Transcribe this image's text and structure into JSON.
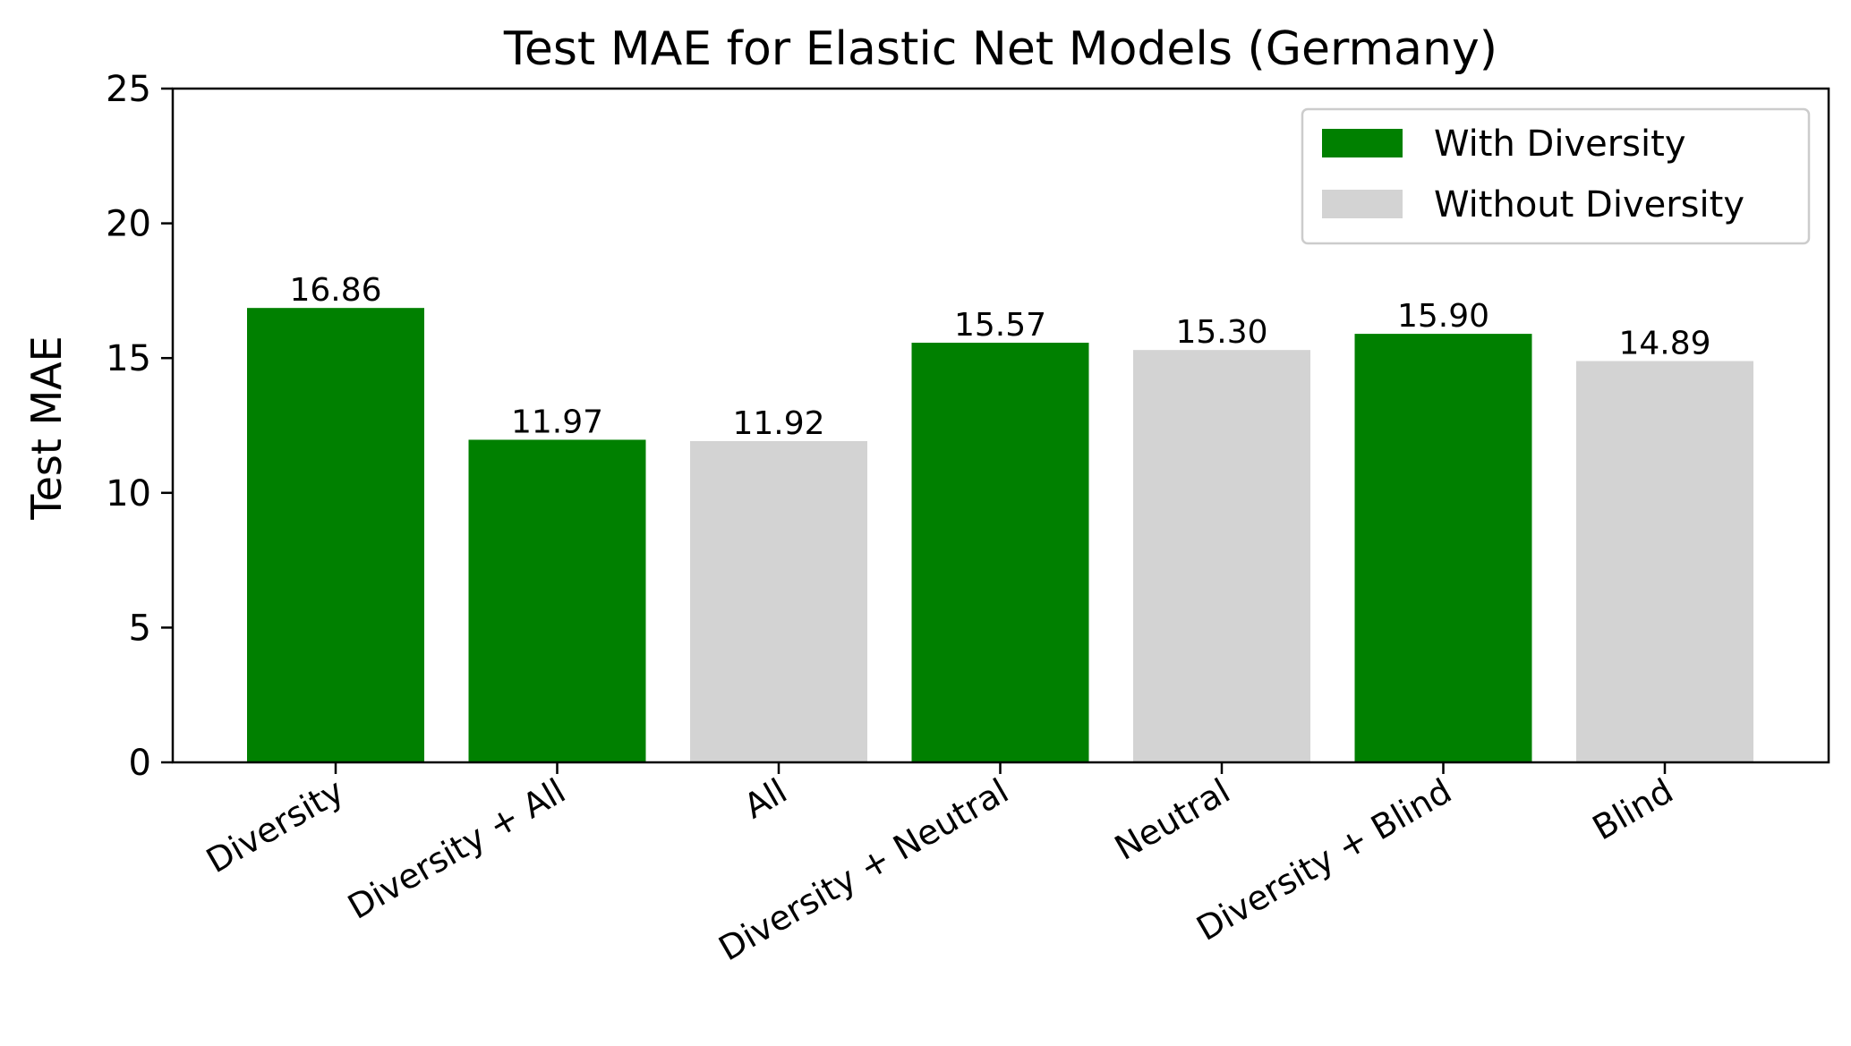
{
  "chart_data": {
    "type": "bar",
    "title": "Test MAE for Elastic Net Models (Germany)",
    "xlabel": "",
    "ylabel": "Test MAE",
    "ylim": [
      0,
      25
    ],
    "yticks": [
      0,
      5,
      10,
      15,
      20,
      25
    ],
    "grid": false,
    "legend_position": "top-right",
    "categories": [
      "Diversity",
      "Diversity + All",
      "All",
      "Diversity + Neutral",
      "Neutral",
      "Diversity + Blind",
      "Blind"
    ],
    "values": [
      16.86,
      11.97,
      11.92,
      15.57,
      15.3,
      15.9,
      14.89
    ],
    "data_labels": [
      "16.86",
      "11.97",
      "11.92",
      "15.57",
      "15.30",
      "15.90",
      "14.89"
    ],
    "bar_group": [
      0,
      0,
      1,
      0,
      1,
      0,
      1
    ],
    "legend": [
      {
        "label": "With Diversity",
        "color": "#008000"
      },
      {
        "label": "Without Diversity",
        "color": "#d3d3d3"
      }
    ]
  }
}
